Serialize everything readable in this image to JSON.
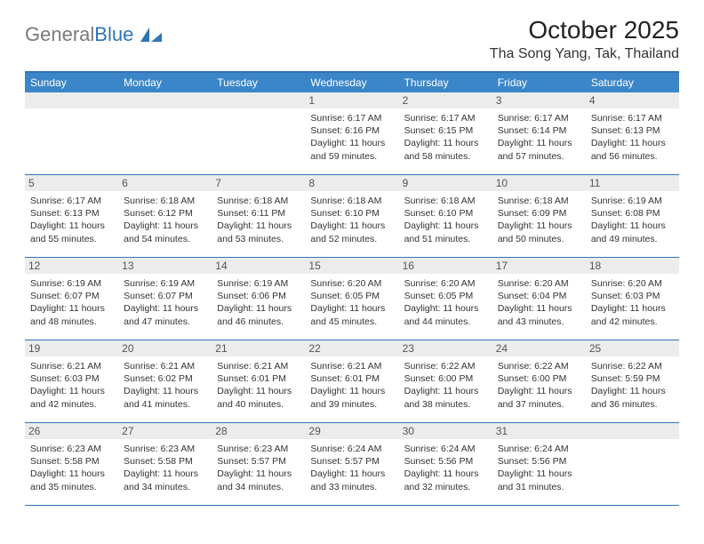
{
  "brand": {
    "part1": "General",
    "part2": "Blue"
  },
  "title": "October 2025",
  "location": "Tha Song Yang, Tak, Thailand",
  "colors": {
    "header_bg": "#3b86c8",
    "border": "#2f74b5",
    "daynum_bg": "#ececec",
    "text": "#333333",
    "logo_gray": "#7a7a7a",
    "logo_blue": "#2f74b5"
  },
  "dow": [
    "Sunday",
    "Monday",
    "Tuesday",
    "Wednesday",
    "Thursday",
    "Friday",
    "Saturday"
  ],
  "weeks": [
    [
      {
        "n": "",
        "sr": "",
        "ss": "",
        "dl": ""
      },
      {
        "n": "",
        "sr": "",
        "ss": "",
        "dl": ""
      },
      {
        "n": "",
        "sr": "",
        "ss": "",
        "dl": ""
      },
      {
        "n": "1",
        "sr": "Sunrise: 6:17 AM",
        "ss": "Sunset: 6:16 PM",
        "dl": "Daylight: 11 hours and 59 minutes."
      },
      {
        "n": "2",
        "sr": "Sunrise: 6:17 AM",
        "ss": "Sunset: 6:15 PM",
        "dl": "Daylight: 11 hours and 58 minutes."
      },
      {
        "n": "3",
        "sr": "Sunrise: 6:17 AM",
        "ss": "Sunset: 6:14 PM",
        "dl": "Daylight: 11 hours and 57 minutes."
      },
      {
        "n": "4",
        "sr": "Sunrise: 6:17 AM",
        "ss": "Sunset: 6:13 PM",
        "dl": "Daylight: 11 hours and 56 minutes."
      }
    ],
    [
      {
        "n": "5",
        "sr": "Sunrise: 6:17 AM",
        "ss": "Sunset: 6:13 PM",
        "dl": "Daylight: 11 hours and 55 minutes."
      },
      {
        "n": "6",
        "sr": "Sunrise: 6:18 AM",
        "ss": "Sunset: 6:12 PM",
        "dl": "Daylight: 11 hours and 54 minutes."
      },
      {
        "n": "7",
        "sr": "Sunrise: 6:18 AM",
        "ss": "Sunset: 6:11 PM",
        "dl": "Daylight: 11 hours and 53 minutes."
      },
      {
        "n": "8",
        "sr": "Sunrise: 6:18 AM",
        "ss": "Sunset: 6:10 PM",
        "dl": "Daylight: 11 hours and 52 minutes."
      },
      {
        "n": "9",
        "sr": "Sunrise: 6:18 AM",
        "ss": "Sunset: 6:10 PM",
        "dl": "Daylight: 11 hours and 51 minutes."
      },
      {
        "n": "10",
        "sr": "Sunrise: 6:18 AM",
        "ss": "Sunset: 6:09 PM",
        "dl": "Daylight: 11 hours and 50 minutes."
      },
      {
        "n": "11",
        "sr": "Sunrise: 6:19 AM",
        "ss": "Sunset: 6:08 PM",
        "dl": "Daylight: 11 hours and 49 minutes."
      }
    ],
    [
      {
        "n": "12",
        "sr": "Sunrise: 6:19 AM",
        "ss": "Sunset: 6:07 PM",
        "dl": "Daylight: 11 hours and 48 minutes."
      },
      {
        "n": "13",
        "sr": "Sunrise: 6:19 AM",
        "ss": "Sunset: 6:07 PM",
        "dl": "Daylight: 11 hours and 47 minutes."
      },
      {
        "n": "14",
        "sr": "Sunrise: 6:19 AM",
        "ss": "Sunset: 6:06 PM",
        "dl": "Daylight: 11 hours and 46 minutes."
      },
      {
        "n": "15",
        "sr": "Sunrise: 6:20 AM",
        "ss": "Sunset: 6:05 PM",
        "dl": "Daylight: 11 hours and 45 minutes."
      },
      {
        "n": "16",
        "sr": "Sunrise: 6:20 AM",
        "ss": "Sunset: 6:05 PM",
        "dl": "Daylight: 11 hours and 44 minutes."
      },
      {
        "n": "17",
        "sr": "Sunrise: 6:20 AM",
        "ss": "Sunset: 6:04 PM",
        "dl": "Daylight: 11 hours and 43 minutes."
      },
      {
        "n": "18",
        "sr": "Sunrise: 6:20 AM",
        "ss": "Sunset: 6:03 PM",
        "dl": "Daylight: 11 hours and 42 minutes."
      }
    ],
    [
      {
        "n": "19",
        "sr": "Sunrise: 6:21 AM",
        "ss": "Sunset: 6:03 PM",
        "dl": "Daylight: 11 hours and 42 minutes."
      },
      {
        "n": "20",
        "sr": "Sunrise: 6:21 AM",
        "ss": "Sunset: 6:02 PM",
        "dl": "Daylight: 11 hours and 41 minutes."
      },
      {
        "n": "21",
        "sr": "Sunrise: 6:21 AM",
        "ss": "Sunset: 6:01 PM",
        "dl": "Daylight: 11 hours and 40 minutes."
      },
      {
        "n": "22",
        "sr": "Sunrise: 6:21 AM",
        "ss": "Sunset: 6:01 PM",
        "dl": "Daylight: 11 hours and 39 minutes."
      },
      {
        "n": "23",
        "sr": "Sunrise: 6:22 AM",
        "ss": "Sunset: 6:00 PM",
        "dl": "Daylight: 11 hours and 38 minutes."
      },
      {
        "n": "24",
        "sr": "Sunrise: 6:22 AM",
        "ss": "Sunset: 6:00 PM",
        "dl": "Daylight: 11 hours and 37 minutes."
      },
      {
        "n": "25",
        "sr": "Sunrise: 6:22 AM",
        "ss": "Sunset: 5:59 PM",
        "dl": "Daylight: 11 hours and 36 minutes."
      }
    ],
    [
      {
        "n": "26",
        "sr": "Sunrise: 6:23 AM",
        "ss": "Sunset: 5:58 PM",
        "dl": "Daylight: 11 hours and 35 minutes."
      },
      {
        "n": "27",
        "sr": "Sunrise: 6:23 AM",
        "ss": "Sunset: 5:58 PM",
        "dl": "Daylight: 11 hours and 34 minutes."
      },
      {
        "n": "28",
        "sr": "Sunrise: 6:23 AM",
        "ss": "Sunset: 5:57 PM",
        "dl": "Daylight: 11 hours and 34 minutes."
      },
      {
        "n": "29",
        "sr": "Sunrise: 6:24 AM",
        "ss": "Sunset: 5:57 PM",
        "dl": "Daylight: 11 hours and 33 minutes."
      },
      {
        "n": "30",
        "sr": "Sunrise: 6:24 AM",
        "ss": "Sunset: 5:56 PM",
        "dl": "Daylight: 11 hours and 32 minutes."
      },
      {
        "n": "31",
        "sr": "Sunrise: 6:24 AM",
        "ss": "Sunset: 5:56 PM",
        "dl": "Daylight: 11 hours and 31 minutes."
      },
      {
        "n": "",
        "sr": "",
        "ss": "",
        "dl": ""
      }
    ]
  ]
}
